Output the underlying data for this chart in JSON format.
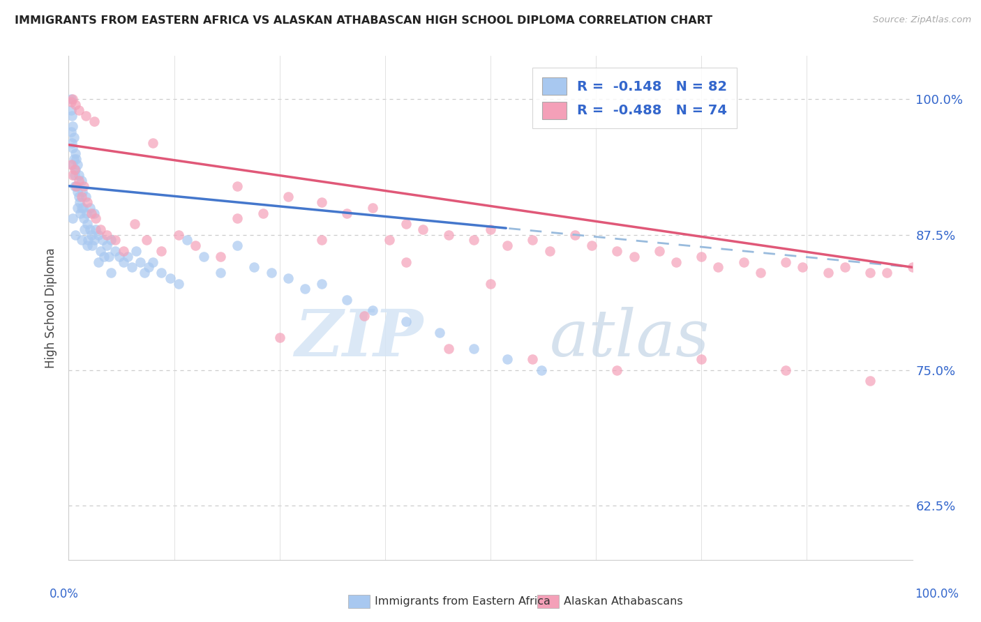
{
  "title": "IMMIGRANTS FROM EASTERN AFRICA VS ALASKAN ATHABASCAN HIGH SCHOOL DIPLOMA CORRELATION CHART",
  "source": "Source: ZipAtlas.com",
  "ylabel": "High School Diploma",
  "legend_blue_r": "R = -0.148",
  "legend_blue_n": "N = 82",
  "legend_pink_r": "R = -0.488",
  "legend_pink_n": "N = 74",
  "legend_label_blue": "Immigrants from Eastern Africa",
  "legend_label_pink": "Alaskan Athabascans",
  "blue_color": "#a8c8f0",
  "pink_color": "#f4a0b8",
  "blue_line_color": "#4477cc",
  "pink_line_color": "#e05878",
  "dashed_line_color": "#99bbdd",
  "ytick_labels": [
    "62.5%",
    "75.0%",
    "87.5%",
    "100.0%"
  ],
  "ytick_values": [
    0.625,
    0.75,
    0.875,
    1.0
  ],
  "xlim": [
    0.0,
    1.0
  ],
  "ylim": [
    0.575,
    1.04
  ],
  "watermark_zip": "ZIP",
  "watermark_atlas": "atlas",
  "blue_r": -0.148,
  "pink_r": -0.488,
  "blue_n": 82,
  "pink_n": 74,
  "blue_line_x_start": 0.0,
  "blue_line_x_solid_end": 0.52,
  "blue_line_x_end": 1.0,
  "blue_line_y_start": 0.92,
  "blue_line_y_end": 0.845,
  "pink_line_x_start": 0.0,
  "pink_line_x_end": 1.0,
  "pink_line_y_start": 0.955,
  "pink_line_y_end": 0.845
}
